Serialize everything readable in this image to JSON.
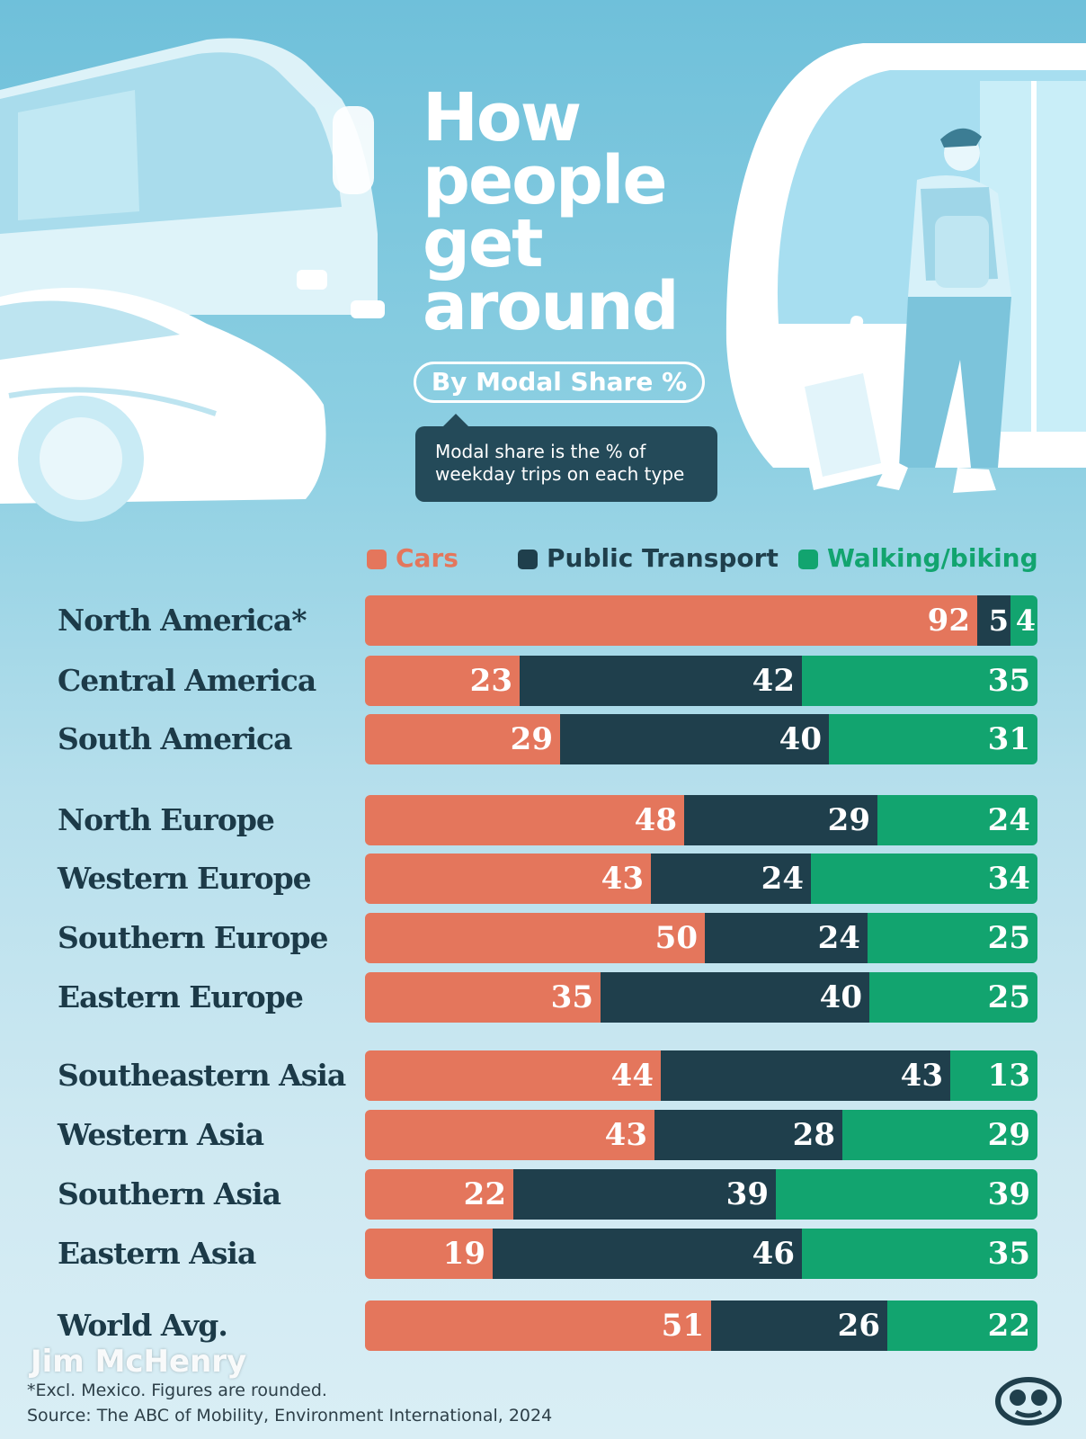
{
  "header": {
    "title_lines": [
      "How",
      "people",
      "get",
      "around"
    ],
    "subtitle": "By Modal Share %",
    "note": "Modal share is the % of weekday trips on each type"
  },
  "legend": {
    "cars": "Cars",
    "public": "Public Transport",
    "walking": "Walking/biking"
  },
  "colors": {
    "cars": "#e4765c",
    "public": "#1f3f4c",
    "walking": "#12a46f"
  },
  "chart_data": {
    "type": "bar",
    "orientation": "horizontal",
    "stacked": true,
    "categories": [
      "North America*",
      "Central America",
      "South America",
      "North Europe",
      "Western Europe",
      "Southern Europe",
      "Eastern Europe",
      "Southeastern Asia",
      "Western Asia",
      "Southern Asia",
      "Eastern Asia",
      "World Avg."
    ],
    "series": [
      {
        "name": "Cars",
        "values": [
          92,
          23,
          29,
          48,
          43,
          50,
          35,
          44,
          43,
          22,
          19,
          51
        ]
      },
      {
        "name": "Public Transport",
        "values": [
          5,
          42,
          40,
          29,
          24,
          24,
          40,
          43,
          28,
          39,
          46,
          26
        ]
      },
      {
        "name": "Walking/biking",
        "values": [
          4,
          35,
          31,
          24,
          34,
          25,
          25,
          13,
          29,
          39,
          35,
          22
        ]
      }
    ],
    "legend_position": "top"
  },
  "footnote": {
    "line1": "Excl. Mexico. Figures are rounded.",
    "line2": "Source: The ABC of Mobility, Environment International, 2024"
  },
  "watermark": "Jim McHenry"
}
